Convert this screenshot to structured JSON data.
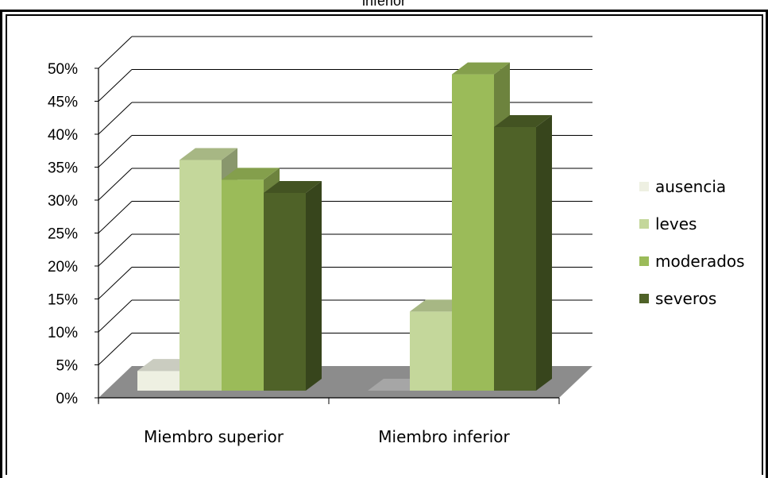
{
  "page": {
    "title": "inferior"
  },
  "chart_data": {
    "type": "bar",
    "categories": [
      "Miembro superior",
      "Miembro inferior"
    ],
    "series": [
      {
        "name": "ausencia",
        "values": [
          3,
          0
        ],
        "color": "#eef0e2"
      },
      {
        "name": "leves",
        "values": [
          35,
          12
        ],
        "color": "#c4d79b"
      },
      {
        "name": "moderados",
        "values": [
          32,
          48
        ],
        "color": "#9bbb59"
      },
      {
        "name": "severos",
        "values": [
          30,
          40
        ],
        "color": "#4f6228"
      }
    ],
    "ylim": [
      0,
      50
    ],
    "yticks": [
      "0%",
      "5%",
      "10%",
      "15%",
      "20%",
      "25%",
      "30%",
      "35%",
      "40%",
      "45%",
      "50%"
    ],
    "grid": true,
    "legend": "right",
    "style": "3d-clustered-column"
  }
}
